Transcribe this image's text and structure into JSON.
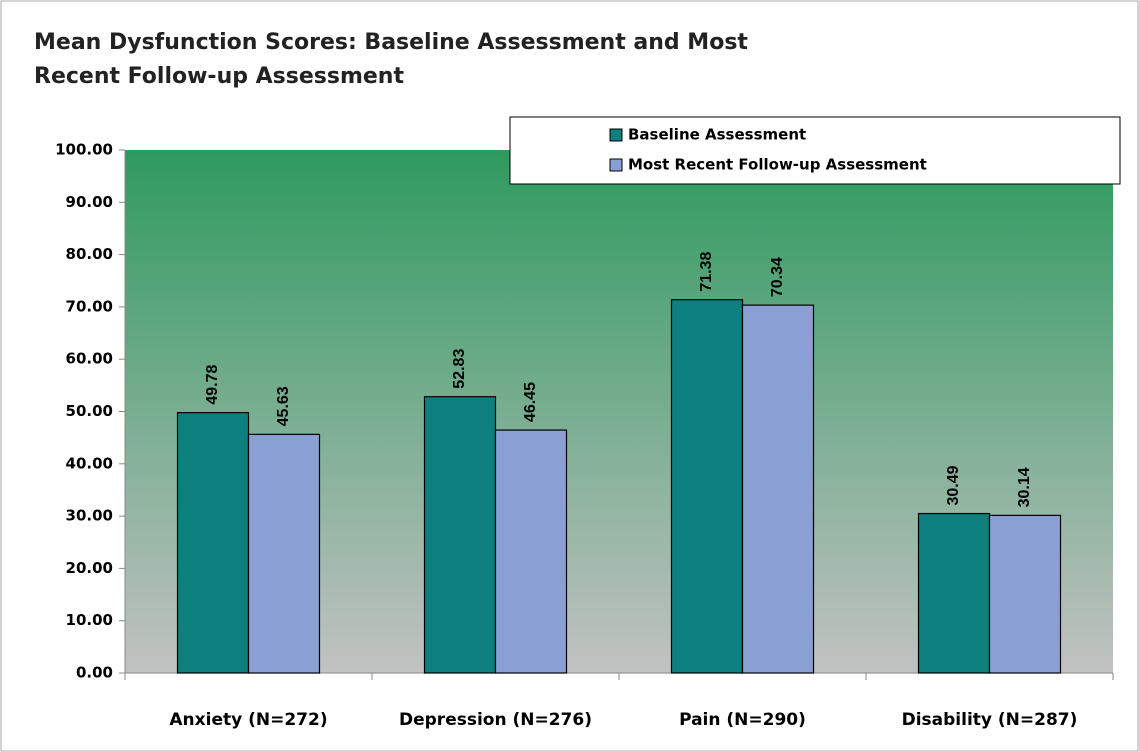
{
  "chart_data": {
    "type": "bar",
    "title": "Mean Dysfunction Scores: Baseline Assessment and Most Recent Follow-up Assessment",
    "categories": [
      "Anxiety (N=272)",
      "Depression (N=276)",
      "Pain (N=290)",
      "Disability (N=287)"
    ],
    "series": [
      {
        "name": "Baseline Assessment",
        "color": "#0e7f7f",
        "values": [
          49.78,
          52.83,
          71.38,
          30.49
        ]
      },
      {
        "name": "Most Recent Follow-up Assessment",
        "color": "#8aa0d4",
        "values": [
          45.63,
          46.45,
          70.34,
          30.14
        ]
      }
    ],
    "ylim": [
      0,
      100
    ],
    "yticks": [
      {
        "value": 0,
        "label": "0.00"
      },
      {
        "value": 10,
        "label": "10.00"
      },
      {
        "value": 20,
        "label": "20.00"
      },
      {
        "value": 30,
        "label": "30.00"
      },
      {
        "value": 40,
        "label": "40.00"
      },
      {
        "value": 50,
        "label": "50.00"
      },
      {
        "value": 60,
        "label": "60.00"
      },
      {
        "value": 70,
        "label": "70.00"
      },
      {
        "value": 80,
        "label": "80.00"
      },
      {
        "value": 90,
        "label": "90.00"
      },
      {
        "value": 100,
        "label": "100.00"
      }
    ],
    "grid": false,
    "legend": "top-right"
  }
}
